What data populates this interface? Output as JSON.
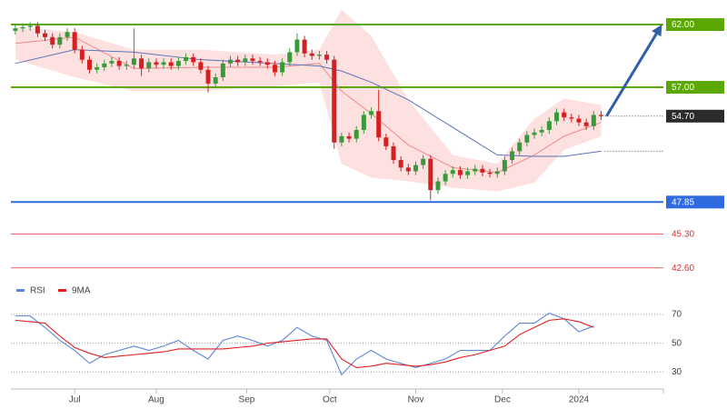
{
  "chart_data": [
    {
      "type": "candlestick",
      "xlim": [
        -0.6,
        87.4
      ],
      "ylim": [
        42.22,
        63.96
      ],
      "up_color": "#3a9a3a",
      "down_color": "#d42020",
      "open": [
        61.5,
        61.7,
        61.8,
        61.9,
        61.3,
        61.0,
        60.4,
        61.0,
        61.4,
        60.0,
        59.2,
        58.4,
        58.6,
        58.9,
        59.1,
        58.7,
        58.8,
        59.3,
        58.5,
        59.0,
        58.8,
        59.0,
        58.7,
        59.1,
        59.4,
        59.0,
        58.4,
        57.3,
        57.8,
        58.9,
        59.2,
        59.0,
        59.3,
        59.1,
        59.0,
        58.8,
        58.2,
        59.0,
        59.8,
        60.8,
        59.7,
        59.5,
        59.6,
        59.2,
        52.6,
        53.1,
        52.9,
        53.6,
        54.8,
        55.1,
        53.0,
        52.3,
        51.2,
        50.6,
        50.3,
        50.8,
        51.3,
        48.8,
        49.5,
        50.1,
        50.4,
        50.0,
        50.3,
        50.5,
        50.2,
        50.1,
        50.3,
        51.2,
        51.9,
        52.6,
        53.2,
        53.4,
        53.6,
        54.3,
        55.0,
        54.6,
        54.5,
        54.2,
        53.9,
        54.8
      ],
      "high": [
        62.0,
        62.1,
        62.2,
        62.2,
        61.6,
        61.3,
        61.3,
        61.7,
        61.7,
        60.3,
        59.5,
        58.9,
        59.2,
        59.4,
        59.4,
        59.1,
        61.7,
        59.6,
        59.3,
        59.3,
        59.3,
        59.3,
        59.4,
        59.7,
        59.7,
        59.3,
        58.7,
        58.1,
        59.2,
        59.5,
        59.5,
        59.6,
        59.6,
        59.4,
        59.3,
        59.1,
        59.3,
        60.1,
        61.3,
        61.1,
        60.0,
        59.9,
        59.9,
        59.5,
        53.4,
        53.4,
        53.9,
        55.1,
        55.4,
        56.8,
        53.3,
        52.6,
        51.5,
        50.9,
        51.1,
        51.6,
        51.6,
        49.8,
        50.4,
        50.7,
        50.7,
        50.6,
        50.8,
        50.8,
        50.5,
        50.6,
        51.5,
        52.2,
        52.9,
        53.5,
        53.7,
        53.9,
        54.6,
        55.3,
        55.3,
        54.9,
        54.8,
        54.5,
        55.1,
        55.1
      ],
      "low": [
        61.2,
        61.4,
        61.5,
        61.0,
        60.7,
        60.1,
        60.1,
        60.7,
        59.7,
        58.9,
        58.1,
        58.1,
        58.3,
        58.6,
        58.4,
        58.4,
        58.5,
        57.9,
        58.2,
        58.5,
        58.5,
        58.4,
        58.4,
        58.8,
        58.7,
        58.1,
        56.6,
        57.0,
        57.5,
        58.6,
        58.7,
        58.7,
        58.8,
        58.7,
        58.5,
        57.9,
        57.9,
        58.7,
        59.5,
        59.4,
        59.2,
        59.2,
        58.9,
        52.1,
        52.3,
        52.6,
        52.6,
        53.3,
        54.5,
        52.7,
        52.0,
        50.9,
        50.3,
        50.0,
        50.0,
        50.5,
        48.0,
        48.5,
        49.2,
        49.8,
        49.7,
        49.7,
        50.0,
        49.9,
        49.8,
        49.8,
        50.0,
        50.9,
        51.6,
        52.3,
        52.9,
        53.1,
        53.3,
        54.0,
        54.3,
        54.2,
        53.9,
        53.6,
        53.6,
        54.4
      ],
      "close": [
        61.7,
        61.8,
        61.9,
        61.3,
        61.0,
        60.4,
        61.0,
        61.4,
        60.0,
        59.2,
        58.4,
        58.6,
        58.9,
        59.1,
        58.7,
        58.8,
        59.3,
        58.5,
        59.0,
        58.8,
        59.0,
        58.7,
        59.1,
        59.4,
        59.0,
        58.4,
        57.3,
        57.8,
        58.9,
        59.2,
        59.0,
        59.3,
        59.1,
        59.0,
        58.8,
        58.2,
        59.0,
        59.8,
        60.8,
        59.7,
        59.5,
        59.6,
        59.2,
        52.6,
        53.1,
        52.9,
        53.6,
        54.8,
        55.1,
        53.0,
        52.3,
        51.2,
        50.6,
        50.3,
        50.8,
        51.3,
        48.8,
        49.5,
        50.1,
        50.4,
        50.0,
        50.3,
        50.5,
        50.2,
        50.1,
        50.3,
        51.2,
        51.9,
        52.6,
        53.2,
        53.4,
        53.6,
        54.3,
        55.0,
        54.6,
        54.5,
        54.2,
        53.9,
        54.8,
        54.7
      ],
      "last_price_label": "54.70",
      "last_price_color": "#2b2b2b",
      "band": {
        "x": [
          0,
          8,
          16,
          25,
          35,
          41,
          44,
          48,
          53,
          59,
          65,
          70,
          74,
          79
        ],
        "color": "#fcd6d6",
        "upper": [
          61.8,
          61.4,
          60.0,
          60.0,
          59.6,
          60.0,
          63.2,
          61.1,
          56.0,
          51.6,
          50.9,
          54.5,
          56.1,
          55.6
        ],
        "lower": [
          59.2,
          57.8,
          56.7,
          56.7,
          57.1,
          57.4,
          50.9,
          49.8,
          49.5,
          49.0,
          48.7,
          49.4,
          52.0,
          53.1
        ]
      },
      "lines": [
        {
          "x": [
            0,
            8,
            16,
            25,
            35,
            41,
            44,
            48,
            53,
            59,
            65,
            70,
            74,
            79
          ],
          "color": "#f08a8a",
          "values": [
            60.5,
            61.0,
            58.5,
            58.6,
            58.6,
            58.9,
            56.7,
            54.9,
            52.4,
            50.6,
            50.2,
            51.6,
            53.1,
            54.2
          ]
        },
        {
          "x": [
            0,
            8,
            16,
            25,
            35,
            41,
            44,
            48,
            53,
            59,
            65,
            70,
            74,
            79
          ],
          "color": "#5b74b8",
          "values": [
            58.9,
            60.0,
            59.8,
            59.2,
            58.9,
            58.7,
            58.3,
            57.4,
            56.0,
            53.8,
            51.6,
            51.5,
            51.5,
            51.9
          ]
        }
      ],
      "levels": [
        {
          "value": 62,
          "label": "62.00",
          "color": "#5aa800",
          "style": "box"
        },
        {
          "value": 57,
          "label": "57.00",
          "color": "#5aa800",
          "style": "box"
        },
        {
          "value": 47.85,
          "label": "47.85",
          "color": "#2f6be0",
          "style": "box"
        },
        {
          "value": 45.3,
          "label": "45.30",
          "color": "#e03030",
          "style": "text"
        },
        {
          "value": 42.6,
          "label": "42.60",
          "color": "#e03030",
          "style": "text"
        }
      ],
      "arrow_color": "#2f5fa8"
    },
    {
      "type": "line",
      "xlim": [
        -0.6,
        87.4
      ],
      "ylim": [
        20,
        77
      ],
      "yticks": [
        70,
        50,
        30
      ],
      "grid": true,
      "legend": "top-left",
      "xticks": [
        {
          "value": 8,
          "label": "Jul"
        },
        {
          "value": 19,
          "label": "Aug"
        },
        {
          "value": 31.2,
          "label": "Sep"
        },
        {
          "value": 42.4,
          "label": "Oct"
        },
        {
          "value": 54,
          "label": "Nov"
        },
        {
          "value": 65.7,
          "label": "Dec"
        },
        {
          "value": 76,
          "label": "2024"
        }
      ],
      "x": [
        0,
        2,
        4,
        6,
        8,
        10,
        12,
        14,
        16,
        18,
        20,
        22,
        24,
        26,
        28,
        30,
        32,
        34,
        36,
        38,
        40,
        42,
        44,
        46,
        48,
        50,
        52,
        54,
        56,
        58,
        60,
        62,
        64,
        66,
        68,
        70,
        72,
        74,
        76,
        78
      ],
      "series": [
        {
          "name": "RSI",
          "color": "#5b86d6",
          "values": [
            69,
            69,
            61,
            52,
            45,
            36,
            42,
            45,
            48,
            45,
            48,
            52,
            45,
            39,
            52,
            55,
            52,
            48,
            52,
            61,
            55,
            52,
            28,
            39,
            45,
            39,
            36,
            33,
            36,
            39,
            45,
            45,
            45,
            55,
            64,
            64,
            71,
            67,
            58,
            62
          ]
        },
        {
          "name": "9MA",
          "color": "#e02020",
          "values": [
            66,
            65,
            64,
            55,
            47,
            43,
            40,
            41,
            42,
            43,
            44,
            46,
            46,
            46,
            46,
            47,
            48,
            50,
            51,
            52,
            53,
            53,
            39,
            33,
            34,
            36,
            35,
            34,
            35,
            37,
            40,
            42,
            45,
            48,
            56,
            61,
            66,
            67,
            65,
            61
          ]
        }
      ]
    }
  ]
}
